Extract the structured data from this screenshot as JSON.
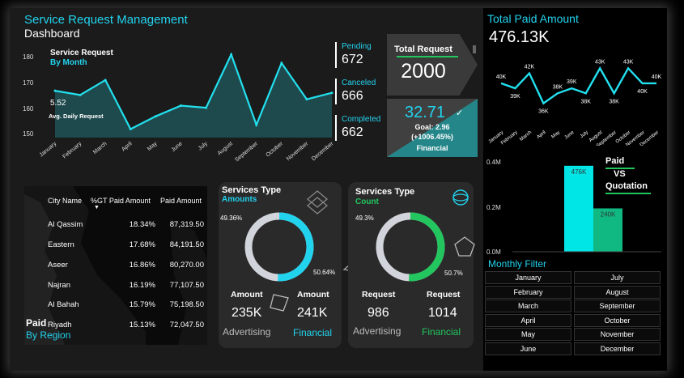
{
  "header": {
    "title": "Service Request Management",
    "subtitle": "Dashboard"
  },
  "line_chart": {
    "title": "Service Request",
    "subtitle": "By Month",
    "avg_value": "5.52",
    "avg_label": "Avg. Daily Request",
    "yticks": [
      "180",
      "170",
      "160",
      "150"
    ]
  },
  "status": [
    {
      "label": "Pending",
      "value": "672"
    },
    {
      "label": "Canceled",
      "value": "666"
    },
    {
      "label": "Completed",
      "value": "662"
    }
  ],
  "total_request": {
    "label": "Total Request",
    "value": "2000"
  },
  "financial_kpi": {
    "value": "32.71",
    "goal": "Goal: 2.96",
    "delta": "(+1006.45%)",
    "label": "Financial"
  },
  "paid_amount": {
    "title": "Total Paid Amount",
    "value": "476.13K"
  },
  "paid_vs_quotation": {
    "title_line1": "Paid",
    "title_line2": "VS",
    "title_line3": "Quotation",
    "yticks": [
      "0.4M",
      "0.2M",
      "0.0M"
    ]
  },
  "monthly_filter": {
    "title": "Monthly  Filter",
    "left": [
      "January",
      "February",
      "March",
      "April",
      "May",
      "June"
    ],
    "right": [
      "July",
      "August",
      "September",
      "October",
      "November",
      "December"
    ]
  },
  "region": {
    "headers": [
      "City Name",
      "%GT Paid Amount",
      "Paid Amount"
    ],
    "rows": [
      {
        "city": "Al Qassim",
        "pct": "18.34%",
        "amount": "87,319.50"
      },
      {
        "city": "Eastern",
        "pct": "17.68%",
        "amount": "84,191.50"
      },
      {
        "city": "Aseer",
        "pct": "16.86%",
        "amount": "80,270.00"
      },
      {
        "city": "Najran",
        "pct": "16.19%",
        "amount": "77,107.50"
      },
      {
        "city": "Al Bahah",
        "pct": "15.79%",
        "amount": "75,198.50"
      },
      {
        "city": "Riyadh",
        "pct": "15.13%",
        "amount": "72,047.50"
      }
    ],
    "footer1": "Paid",
    "footer2": "By Region"
  },
  "services_amount": {
    "title": "Services Type",
    "subtitle": "Amounts",
    "left_pct": "49.36%",
    "right_pct": "50.64%",
    "left_label": "Amount",
    "right_label": "Amount",
    "left_value": "235K",
    "right_value": "241K",
    "left_cat": "Advertising",
    "right_cat": "Financial"
  },
  "services_count": {
    "title": "Services Type",
    "subtitle": "Count",
    "left_pct": "49.3%",
    "right_pct": "50.7%",
    "left_label": "Request",
    "right_label": "Request",
    "left_value": "986",
    "right_value": "1014",
    "left_cat": "Advertising",
    "right_cat": "Financial"
  },
  "colors": {
    "accent": "#22d3ee",
    "teal": "#25868a",
    "green": "#22c55e",
    "bar_paid": "#00e5e5",
    "bar_quote": "#10b981"
  },
  "chart_data": [
    {
      "type": "area",
      "title": "Service Request",
      "categories": [
        "January",
        "February",
        "March",
        "April",
        "May",
        "June",
        "July",
        "August",
        "September",
        "October",
        "November",
        "December"
      ],
      "values": [
        170,
        168,
        175,
        152,
        158,
        163,
        162,
        187,
        154,
        183,
        166,
        169
      ],
      "ylim": [
        148,
        186
      ]
    },
    {
      "type": "line",
      "title": "Total Paid Amount",
      "categories": [
        "January",
        "February",
        "March",
        "April",
        "May",
        "June",
        "July",
        "August",
        "September",
        "October",
        "November",
        "December"
      ],
      "values": [
        40,
        39,
        42,
        36,
        38,
        39,
        38,
        43,
        38,
        43,
        40,
        40
      ],
      "labels": [
        "40K",
        "39K",
        "42K",
        "36K",
        "38K",
        "39K",
        "38K",
        "43K",
        "38K",
        "43K",
        "40K",
        "40K"
      ],
      "ylim": [
        34,
        45
      ]
    },
    {
      "type": "bar",
      "title": "Paid VS Quotation",
      "categories": [
        "Paid",
        "Quotation"
      ],
      "values": [
        476,
        240
      ],
      "labels": [
        "476K",
        "240K"
      ],
      "ylim": [
        0,
        520
      ]
    }
  ]
}
